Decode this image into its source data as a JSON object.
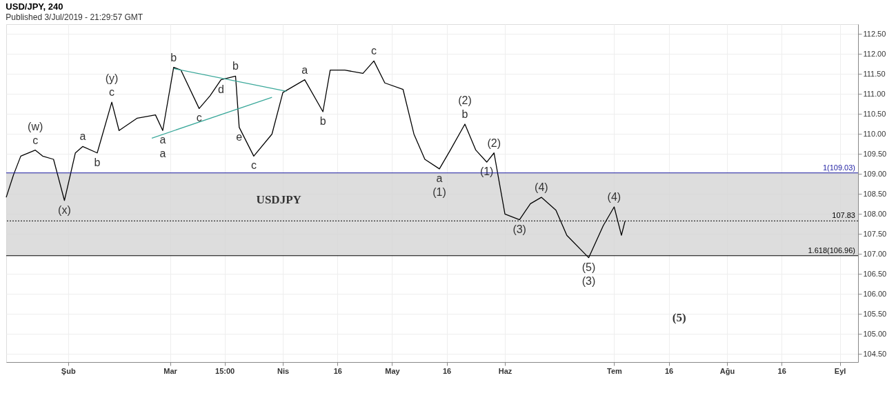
{
  "chart_data": {
    "type": "line",
    "title": "USD/JPY, 240",
    "subtitle": "Published 3/Jul/2019 - 21:29:57 GMT",
    "xlim": [
      "2019-01-15",
      "2019-09-06"
    ],
    "xticks": [
      {
        "value": "2019-02-01",
        "label": "Şub"
      },
      {
        "value": "2019-03-01",
        "label": "Mar"
      },
      {
        "value": "2019-03-16",
        "label": "15:00"
      },
      {
        "value": "2019-04-01",
        "label": "Nis"
      },
      {
        "value": "2019-04-16",
        "label": "16"
      },
      {
        "value": "2019-05-01",
        "label": "May"
      },
      {
        "value": "2019-05-16",
        "label": "16"
      },
      {
        "value": "2019-06-01",
        "label": "Haz"
      },
      {
        "value": "2019-07-01",
        "label": "Tem"
      },
      {
        "value": "2019-07-16",
        "label": "16"
      },
      {
        "value": "2019-08-01",
        "label": "Ağu"
      },
      {
        "value": "2019-08-16",
        "label": "16"
      },
      {
        "value": "2019-09-01",
        "label": "Eyl"
      }
    ],
    "ylim": [
      104.3,
      112.75
    ],
    "yticks": [
      {
        "value": 104.5,
        "label": "104.50"
      },
      {
        "value": 105,
        "label": "105.00"
      },
      {
        "value": 105.5,
        "label": "105.50"
      },
      {
        "value": 106,
        "label": "106.00"
      },
      {
        "value": 106.5,
        "label": "106.50"
      },
      {
        "value": 107,
        "label": "107.00"
      },
      {
        "value": 107.5,
        "label": "107.50"
      },
      {
        "value": 108,
        "label": "108.00"
      },
      {
        "value": 108.5,
        "label": "108.50"
      },
      {
        "value": 109,
        "label": "109.00"
      },
      {
        "value": 109.5,
        "label": "109.50"
      },
      {
        "value": 110,
        "label": "110.00"
      },
      {
        "value": 110.5,
        "label": "110.50"
      },
      {
        "value": 111,
        "label": "111.00"
      },
      {
        "value": 111.5,
        "label": "111.50"
      },
      {
        "value": 112,
        "label": "112.00"
      },
      {
        "value": 112.5,
        "label": "112.50"
      }
    ],
    "grid": true,
    "line_style": "solid",
    "bands": [
      {
        "axis": "y",
        "from": 106.96,
        "to": 109.03,
        "color": "#d4d4d4"
      }
    ],
    "ref_lines": [
      {
        "axis": "y",
        "value": 109.03,
        "label": "1(109.03)",
        "color": "#1a1aa0",
        "line_style": "solid"
      },
      {
        "axis": "y",
        "value": 106.96,
        "label": "1.618(106.96)",
        "color": "#000000",
        "line_style": "solid"
      },
      {
        "axis": "y",
        "value": 107.83,
        "label": "107.83",
        "color": "#000000",
        "line_style": "dotted"
      }
    ],
    "series": [
      {
        "color": "#000000",
        "x": [
          "2019-01-15",
          "2019-01-17",
          "2019-01-19",
          "2019-01-23",
          "2019-01-25",
          "2019-01-28",
          "2019-01-31",
          "2019-02-03",
          "2019-02-05",
          "2019-02-09",
          "2019-02-13",
          "2019-02-15",
          "2019-02-20",
          "2019-02-25",
          "2019-02-27",
          "2019-03-02",
          "2019-03-04",
          "2019-03-09",
          "2019-03-12",
          "2019-03-15",
          "2019-03-19",
          "2019-03-20",
          "2019-03-24",
          "2019-03-29",
          "2019-04-01",
          "2019-04-07",
          "2019-04-12",
          "2019-04-14",
          "2019-04-18",
          "2019-04-23",
          "2019-04-26",
          "2019-04-29",
          "2019-05-04",
          "2019-05-07",
          "2019-05-10",
          "2019-05-14",
          "2019-05-17",
          "2019-05-21",
          "2019-05-24",
          "2019-05-27",
          "2019-05-29",
          "2019-06-01",
          "2019-06-05",
          "2019-06-08",
          "2019-06-11",
          "2019-06-15",
          "2019-06-18",
          "2019-06-24",
          "2019-06-28",
          "2019-07-01",
          "2019-07-03",
          "2019-07-04"
        ],
        "values": [
          108.42,
          108.98,
          109.45,
          109.6,
          109.45,
          109.37,
          108.34,
          109.53,
          109.69,
          109.53,
          110.8,
          110.09,
          110.4,
          110.48,
          110.09,
          111.67,
          111.6,
          110.64,
          110.96,
          111.36,
          111.45,
          110.17,
          109.45,
          110.0,
          111.04,
          111.36,
          110.56,
          111.6,
          111.6,
          111.52,
          111.83,
          111.28,
          111.12,
          110.0,
          109.37,
          109.13,
          109.6,
          110.25,
          109.6,
          109.3,
          109.53,
          108.0,
          107.86,
          108.26,
          108.42,
          108.1,
          107.47,
          106.91,
          107.71,
          108.18,
          107.47,
          107.83
        ]
      },
      {
        "type": "line",
        "color": "#3aa89a",
        "x": [
          "2019-03-02",
          "2019-04-02"
        ],
        "values": [
          111.64,
          111.07
        ]
      },
      {
        "type": "line",
        "color": "#3aa89a",
        "x": [
          "2019-02-24",
          "2019-03-29"
        ],
        "values": [
          109.9,
          110.92
        ]
      }
    ],
    "annotations": [
      {
        "text": "c",
        "x": "2019-01-23",
        "y": 109.6
      },
      {
        "text": "(w)",
        "x": "2019-01-23",
        "y": 109.6
      },
      {
        "text": "(x)",
        "x": "2019-01-31",
        "y": 108.34
      },
      {
        "text": "a",
        "x": "2019-02-05",
        "y": 109.69
      },
      {
        "text": "b",
        "x": "2019-02-09",
        "y": 109.53
      },
      {
        "text": "c",
        "x": "2019-02-13",
        "y": 110.8
      },
      {
        "text": "(y)",
        "x": "2019-02-13",
        "y": 110.8
      },
      {
        "text": "a",
        "x": "2019-02-27",
        "y": 110.09
      },
      {
        "text": "a",
        "x": "2019-02-27",
        "y": 110.09
      },
      {
        "text": "b",
        "x": "2019-03-02",
        "y": 111.67
      },
      {
        "text": "c",
        "x": "2019-03-09",
        "y": 110.64
      },
      {
        "text": "d",
        "x": "2019-03-15",
        "y": 111.36
      },
      {
        "text": "b",
        "x": "2019-03-19",
        "y": 111.45
      },
      {
        "text": "e",
        "x": "2019-03-20",
        "y": 110.17
      },
      {
        "text": "c",
        "x": "2019-03-24",
        "y": 109.45
      },
      {
        "text": "a",
        "x": "2019-04-07",
        "y": 111.36
      },
      {
        "text": "b",
        "x": "2019-04-12",
        "y": 110.56
      },
      {
        "text": "c",
        "x": "2019-04-26",
        "y": 111.83
      },
      "USDJPY",
      {
        "text": "b",
        "x": "2019-05-21",
        "y": 110.25
      },
      {
        "text": "(2)",
        "x": "2019-05-21",
        "y": 110.25
      },
      {
        "text": "(2)",
        "x": "2019-05-29",
        "y": 109.53
      },
      {
        "text": "a",
        "x": "2019-05-14",
        "y": 109.13
      },
      {
        "text": "(1)",
        "x": "2019-05-14",
        "y": 109.13
      },
      {
        "text": "(1)",
        "x": "2019-05-27",
        "y": 109.3
      },
      {
        "text": "(3)",
        "x": "2019-06-05",
        "y": 107.86
      },
      {
        "text": "(4)",
        "x": "2019-06-11",
        "y": 108.42
      },
      {
        "text": "(5)",
        "x": "2019-06-24",
        "y": 106.91
      },
      {
        "text": "(3)",
        "x": "2019-06-24",
        "y": 106.91
      },
      {
        "text": "(4)",
        "x": "2019-07-01",
        "y": 108.18
      },
      "(5)"
    ]
  }
}
